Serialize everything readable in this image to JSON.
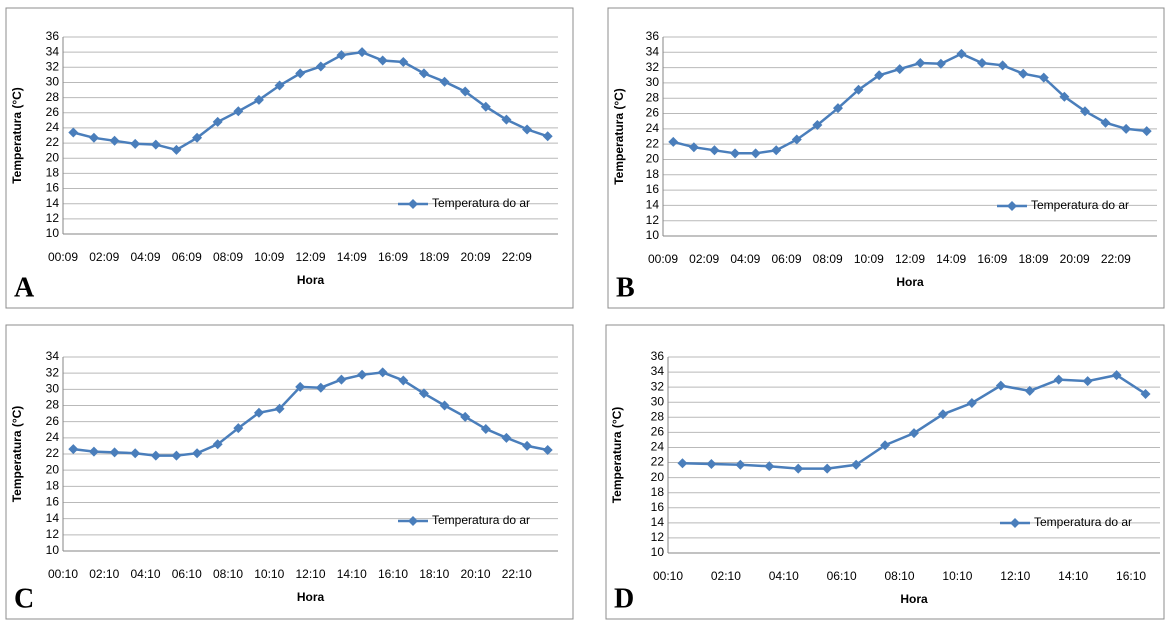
{
  "chart_data": [
    {
      "type": "line",
      "label": "A",
      "x_label": "Hora",
      "y_label": "Temperatura (°C)",
      "categories": [
        "00:09",
        null,
        "02:09",
        null,
        "04:09",
        null,
        "06:09",
        null,
        "08:09",
        null,
        "10:09",
        null,
        "12:09",
        null,
        "14:09",
        null,
        "16:09",
        null,
        "18:09",
        null,
        "20:09",
        null,
        "22:09",
        null
      ],
      "series": [
        {
          "name": "Temperatura do ar",
          "color": "#4a7ebb",
          "values": [
            23.4,
            22.7,
            22.3,
            21.9,
            21.8,
            21.1,
            22.7,
            24.8,
            26.2,
            27.7,
            29.6,
            31.2,
            32.1,
            33.6,
            34.0,
            32.9,
            32.7,
            31.2,
            30.1,
            28.8,
            26.8,
            25.1,
            23.8,
            22.9
          ]
        }
      ],
      "ylim": [
        10,
        36
      ],
      "yticks": [
        10,
        12,
        14,
        16,
        18,
        20,
        22,
        24,
        26,
        28,
        30,
        32,
        34,
        36
      ],
      "grid": true
    },
    {
      "type": "line",
      "label": "B",
      "x_label": "Hora",
      "y_label": "Temperatura (°C)",
      "categories": [
        "00:09",
        null,
        "02:09",
        null,
        "04:09",
        null,
        "06:09",
        null,
        "08:09",
        null,
        "10:09",
        null,
        "12:09",
        null,
        "14:09",
        null,
        "16:09",
        null,
        "18:09",
        null,
        "20:09",
        null,
        "22:09",
        null
      ],
      "series": [
        {
          "name": "Temperatura do ar",
          "color": "#4a7ebb",
          "values": [
            22.3,
            21.6,
            21.2,
            20.8,
            20.8,
            21.2,
            22.6,
            24.5,
            26.7,
            29.1,
            31.0,
            31.8,
            32.6,
            32.5,
            33.8,
            32.6,
            32.3,
            31.2,
            30.7,
            28.2,
            26.3,
            24.8,
            24.0,
            23.7
          ]
        }
      ],
      "ylim": [
        10,
        36
      ],
      "yticks": [
        10,
        12,
        14,
        16,
        18,
        20,
        22,
        24,
        26,
        28,
        30,
        32,
        34,
        36
      ],
      "grid": true
    },
    {
      "type": "line",
      "label": "C",
      "x_label": "Hora",
      "y_label": "Temperatura (°C)",
      "categories": [
        "00:10",
        null,
        "02:10",
        null,
        "04:10",
        null,
        "06:10",
        null,
        "08:10",
        null,
        "10:10",
        null,
        "12:10",
        null,
        "14:10",
        null,
        "16:10",
        null,
        "18:10",
        null,
        "20:10",
        null,
        "22:10",
        null
      ],
      "series": [
        {
          "name": "Temperatura do ar",
          "color": "#4a7ebb",
          "values": [
            22.6,
            22.3,
            22.2,
            22.1,
            21.8,
            21.8,
            22.1,
            23.2,
            25.2,
            27.1,
            27.6,
            30.3,
            30.2,
            31.2,
            31.8,
            32.1,
            31.1,
            29.5,
            28.0,
            26.6,
            25.1,
            24.0,
            23.0,
            22.5
          ]
        }
      ],
      "ylim": [
        10,
        34
      ],
      "yticks": [
        10,
        12,
        14,
        16,
        18,
        20,
        22,
        24,
        26,
        28,
        30,
        32,
        34
      ],
      "grid": true
    },
    {
      "type": "line",
      "label": "D",
      "x_label": "Hora",
      "y_label": "Temperatura (°C)",
      "categories": [
        "00:10",
        null,
        "02:10",
        null,
        "04:10",
        null,
        "06:10",
        null,
        "08:10",
        null,
        "10:10",
        null,
        "12:10",
        null,
        "14:10",
        null,
        "16:10"
      ],
      "series": [
        {
          "name": "Temperatura do ar",
          "color": "#4a7ebb",
          "values": [
            21.9,
            21.8,
            21.7,
            21.5,
            21.2,
            21.2,
            21.7,
            24.3,
            25.9,
            28.4,
            29.9,
            32.2,
            31.5,
            33.0,
            32.8,
            33.6,
            31.1
          ]
        }
      ],
      "ylim": [
        10,
        36
      ],
      "yticks": [
        10,
        12,
        14,
        16,
        18,
        20,
        22,
        24,
        26,
        28,
        30,
        32,
        34,
        36
      ],
      "grid": true
    }
  ]
}
